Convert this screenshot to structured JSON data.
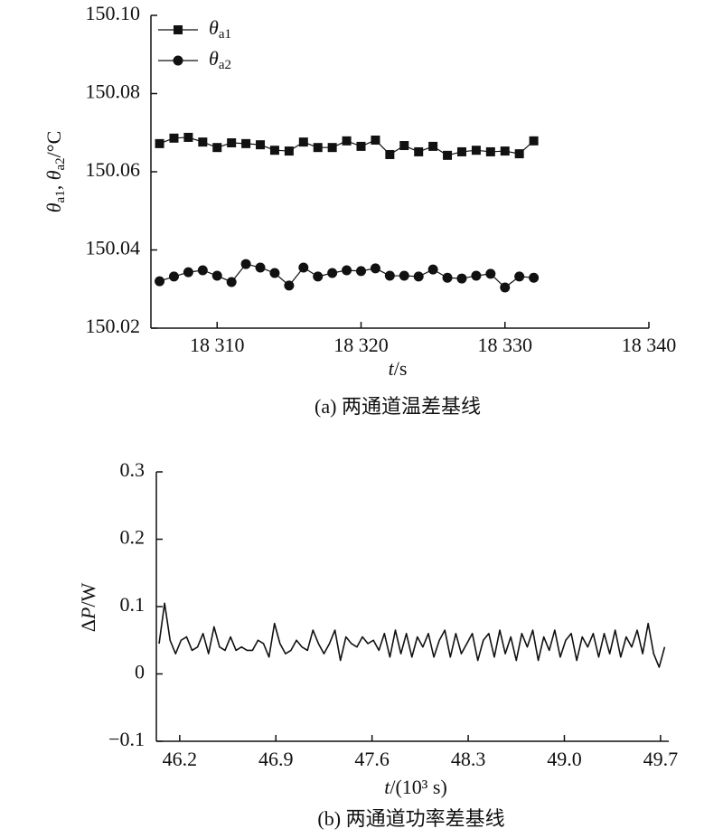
{
  "chart_data": [
    {
      "type": "line",
      "x": [
        18306,
        18307,
        18308,
        18309,
        18310,
        18311,
        18312,
        18313,
        18314,
        18315,
        18316,
        18317,
        18318,
        18319,
        18320,
        18321,
        18322,
        18323,
        18324,
        18325,
        18326,
        18327,
        18328,
        18329,
        18330,
        18331,
        18332
      ],
      "series": [
        {
          "name": "θ",
          "name_subscript": "a1",
          "marker": "square",
          "color": "#111111",
          "values": [
            150.0672,
            150.0686,
            150.0688,
            150.0676,
            150.0662,
            150.0674,
            150.0672,
            150.0669,
            150.0655,
            150.0653,
            150.0676,
            150.0662,
            150.0662,
            150.0679,
            150.0665,
            150.0681,
            150.0644,
            150.0667,
            150.0651,
            150.0665,
            150.0642,
            150.0651,
            150.0655,
            150.0651,
            150.0653,
            150.0646,
            150.0679
          ]
        },
        {
          "name": "θ",
          "name_subscript": "a2",
          "marker": "circle",
          "color": "#111111",
          "values": [
            150.032,
            150.0332,
            150.0343,
            150.0348,
            150.0334,
            150.0318,
            150.0364,
            150.0355,
            150.0341,
            150.0309,
            150.0355,
            150.0332,
            150.0341,
            150.0348,
            150.0346,
            150.0353,
            150.0334,
            150.0334,
            150.0332,
            150.035,
            150.0329,
            150.0327,
            150.0334,
            150.0339,
            150.0304,
            150.0332,
            150.0329
          ]
        }
      ],
      "xlim": [
        18305.4,
        18340
      ],
      "xticks": [
        {
          "value": 18310,
          "label": "18 310"
        },
        {
          "value": 18320,
          "label": "18 320"
        },
        {
          "value": 18330,
          "label": "18 330"
        },
        {
          "value": 18340,
          "label": "18 340"
        }
      ],
      "ylim": [
        150.02,
        150.1
      ],
      "yticks": [
        150.02,
        150.04,
        150.06,
        150.08,
        {
          "value": 150.1,
          "label": "150.10"
        }
      ],
      "ylabel_parts": [
        "θ",
        "a1",
        ", ",
        "θ",
        "a2",
        "/°C"
      ],
      "ylabel_styles": [
        "italic",
        "sub",
        "normal",
        "italic",
        "sub",
        "normal"
      ],
      "xlabel_parts": [
        "t",
        "/s"
      ],
      "xlabel_styles": [
        "italic",
        "normal"
      ],
      "caption": "(a) 两通道温差基线",
      "legend": "upper left"
    },
    {
      "type": "line",
      "x": [
        46.05,
        46.09,
        46.13,
        46.17,
        46.21,
        46.25,
        46.29,
        46.33,
        46.37,
        46.41,
        46.45,
        46.49,
        46.53,
        46.57,
        46.61,
        46.65,
        46.69,
        46.73,
        46.77,
        46.81,
        46.85,
        46.89,
        46.93,
        46.97,
        47.01,
        47.05,
        47.09,
        47.13,
        47.17,
        47.21,
        47.25,
        47.29,
        47.33,
        47.37,
        47.41,
        47.45,
        47.49,
        47.53,
        47.57,
        47.61,
        47.65,
        47.69,
        47.73,
        47.77,
        47.81,
        47.85,
        47.89,
        47.93,
        47.97,
        48.01,
        48.05,
        48.09,
        48.13,
        48.17,
        48.21,
        48.25,
        48.29,
        48.33,
        48.37,
        48.41,
        48.45,
        48.49,
        48.53,
        48.57,
        48.61,
        48.65,
        48.69,
        48.73,
        48.77,
        48.81,
        48.85,
        48.89,
        48.93,
        48.97,
        49.01,
        49.05,
        49.09,
        49.13,
        49.17,
        49.21,
        49.25,
        49.29,
        49.33,
        49.37,
        49.41,
        49.45,
        49.49,
        49.53,
        49.57,
        49.61,
        49.65,
        49.69,
        49.73
      ],
      "series": [
        {
          "color": "#111111",
          "values": [
            0.045,
            0.105,
            0.05,
            0.03,
            0.05,
            0.055,
            0.035,
            0.04,
            0.06,
            0.03,
            0.07,
            0.04,
            0.035,
            0.055,
            0.035,
            0.04,
            0.035,
            0.035,
            0.05,
            0.045,
            0.025,
            0.075,
            0.045,
            0.03,
            0.035,
            0.05,
            0.04,
            0.035,
            0.065,
            0.045,
            0.03,
            0.045,
            0.065,
            0.02,
            0.055,
            0.045,
            0.04,
            0.055,
            0.045,
            0.05,
            0.035,
            0.06,
            0.025,
            0.065,
            0.03,
            0.06,
            0.025,
            0.055,
            0.04,
            0.06,
            0.025,
            0.05,
            0.065,
            0.025,
            0.06,
            0.03,
            0.045,
            0.06,
            0.02,
            0.05,
            0.06,
            0.025,
            0.065,
            0.03,
            0.055,
            0.02,
            0.06,
            0.04,
            0.065,
            0.02,
            0.055,
            0.035,
            0.065,
            0.025,
            0.05,
            0.06,
            0.02,
            0.055,
            0.04,
            0.06,
            0.025,
            0.06,
            0.03,
            0.065,
            0.025,
            0.055,
            0.04,
            0.065,
            0.03,
            0.075,
            0.03,
            0.01,
            0.04
          ]
        }
      ],
      "xlim": [
        46.03,
        49.76
      ],
      "xticks": [
        46.2,
        46.9,
        47.6,
        48.3,
        {
          "value": 49.0,
          "label": "49.0"
        },
        49.7
      ],
      "ylim": [
        -0.1,
        0.3
      ],
      "yticks": [
        {
          "value": -0.1,
          "label": "−0.1"
        },
        0,
        0.1,
        0.2,
        0.3
      ],
      "ylabel_parts": [
        "Δ",
        "P",
        "/W"
      ],
      "ylabel_styles": [
        "normal",
        "italic",
        "normal"
      ],
      "xlabel_parts": [
        "t",
        "/(10³ s)"
      ],
      "xlabel_styles": [
        "italic",
        "normal"
      ],
      "caption": "(b) 两通道功率差基线"
    }
  ]
}
